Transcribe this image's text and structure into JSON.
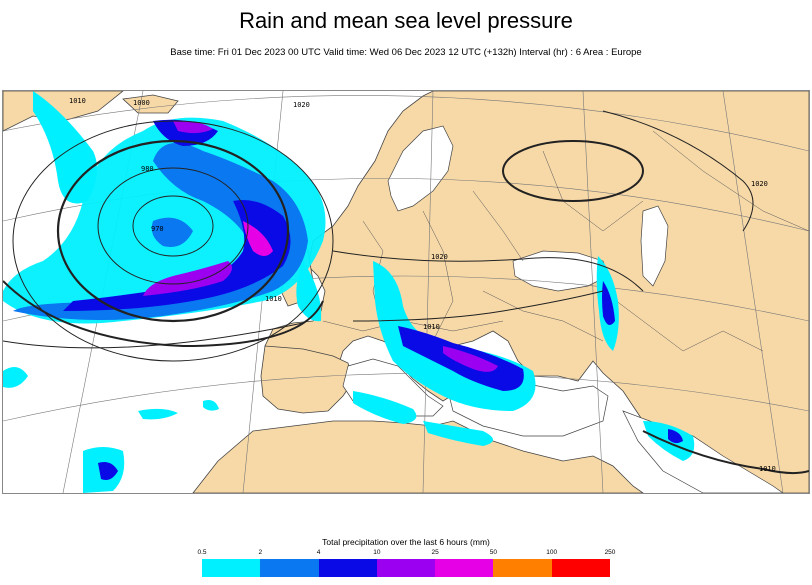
{
  "header": {
    "title": "Rain and mean sea level pressure",
    "subtitle": "Base time: Fri 01 Dec 2023 00 UTC Valid time: Wed 06 Dec 2023 12 UTC (+132h) Interval (hr) : 6 Area : Europe"
  },
  "map": {
    "region": "Europe",
    "colors": {
      "land": "#f7d9a8",
      "sea": "#ffffff",
      "isobar": "#222222",
      "border": "#555555"
    },
    "isobar_labels": [
      "1010",
      "1000",
      "1020",
      "980",
      "970",
      "1010",
      "1020",
      "1010",
      "1020",
      "1010"
    ]
  },
  "legend": {
    "title": "Total precipitation over the last 6 hours (mm)",
    "ticks": [
      "0.5",
      "2",
      "4",
      "10",
      "25",
      "50",
      "100",
      "250"
    ],
    "colors": [
      "#00f0ff",
      "#0a78f0",
      "#0a0ae6",
      "#9b00f0",
      "#e600e6",
      "#ff7f00",
      "#ff0000"
    ]
  }
}
